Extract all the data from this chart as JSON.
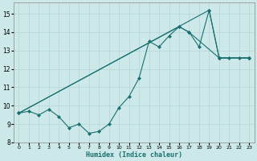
{
  "xlabel": "Humidex (Indice chaleur)",
  "xlim": [
    -0.5,
    23.5
  ],
  "ylim": [
    8,
    15.6
  ],
  "xticks": [
    0,
    1,
    2,
    3,
    4,
    5,
    6,
    7,
    8,
    9,
    10,
    11,
    12,
    13,
    14,
    15,
    16,
    17,
    18,
    19,
    20,
    21,
    22,
    23
  ],
  "yticks": [
    8,
    9,
    10,
    11,
    12,
    13,
    14,
    15
  ],
  "bg_color": "#cce8e8",
  "grid_color": "#b8d8d8",
  "line_color": "#1a7070",
  "series1_x": [
    0,
    1,
    2,
    3,
    4,
    5,
    6,
    7,
    8,
    9,
    10,
    11,
    12,
    13,
    14,
    15,
    16,
    17,
    18,
    19,
    20,
    21,
    22,
    23
  ],
  "series1_y": [
    9.6,
    9.7,
    9.5,
    9.8,
    9.4,
    8.8,
    9.0,
    8.5,
    8.6,
    9.0,
    9.9,
    10.5,
    11.5,
    13.5,
    13.2,
    13.8,
    14.3,
    14.0,
    13.2,
    15.2,
    12.6,
    12.6,
    12.6,
    12.6
  ],
  "series2_x": [
    0,
    19,
    20,
    23
  ],
  "series2_y": [
    9.6,
    15.2,
    12.6,
    12.6
  ],
  "series3_x": [
    0,
    16,
    17,
    20,
    23
  ],
  "series3_y": [
    9.6,
    14.3,
    14.0,
    12.6,
    12.6
  ]
}
